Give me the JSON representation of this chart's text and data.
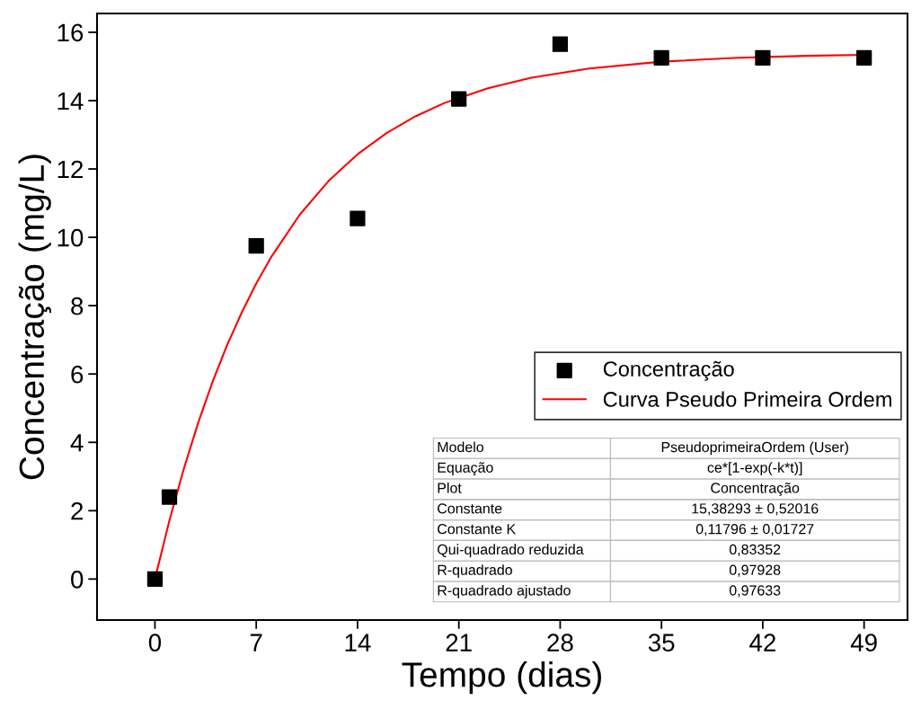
{
  "chart_data": {
    "type": "scatter",
    "xlabel": "Tempo (dias)",
    "ylabel": "Concentração (mg/L)",
    "xlim": [
      -4,
      52
    ],
    "xticks": [
      0,
      7,
      14,
      21,
      28,
      35,
      42,
      49
    ],
    "ylim": [
      -1.2,
      16.55
    ],
    "yticks": [
      0,
      2,
      4,
      6,
      8,
      10,
      12,
      14,
      16
    ],
    "grid": false,
    "legend": "right",
    "series": [
      {
        "name": "Concentração",
        "marker": "square",
        "color": "#000000",
        "x": [
          0,
          1,
          7,
          14,
          21,
          28,
          35,
          42,
          49
        ],
        "values": [
          0,
          2.4,
          9.75,
          10.55,
          14.05,
          15.65,
          15.25,
          15.25,
          15.25
        ]
      },
      {
        "name": "Curva Pseudo Primeira Ordem",
        "type": "line",
        "marker": "none",
        "color": "#ff0000",
        "x": [
          0,
          1,
          2,
          3,
          4,
          5,
          6,
          7,
          8,
          10,
          12,
          14,
          16,
          18,
          20,
          23,
          26,
          30,
          35,
          40,
          45,
          49
        ],
        "values": [
          0,
          1.71,
          3.23,
          4.59,
          5.79,
          6.86,
          7.8,
          8.65,
          9.4,
          10.66,
          11.65,
          12.43,
          13.05,
          13.54,
          13.93,
          14.36,
          14.67,
          14.94,
          15.14,
          15.25,
          15.31,
          15.34
        ]
      }
    ],
    "annotations": [
      "Modelo",
      "PseudoprimeiraOrdem (User)",
      "Equação",
      "ce*[1-exp(-k*t)]",
      "Plot",
      "Concentração",
      "Constante",
      "15,38293 ± 0,52016",
      "Constante K",
      "0,11796 ± 0,01727",
      "Qui-quadrado reduzida",
      "0,83352",
      "R-quadrado",
      "0,97928",
      "R-quadrado ajustado",
      "0,97633"
    ]
  }
}
